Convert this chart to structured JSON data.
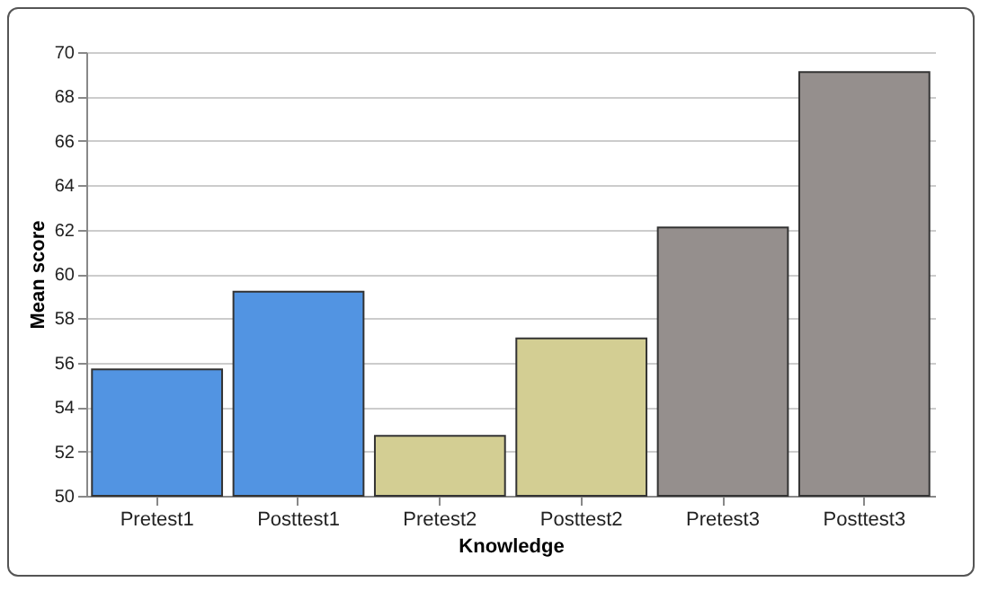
{
  "chart_data": {
    "type": "bar",
    "xlabel": "Knowledge",
    "ylabel": "Mean score",
    "categories": [
      "Pretest1",
      "Posttest1",
      "Pretest2",
      "Posttest2",
      "Pretest3",
      "Posttest3"
    ],
    "values": [
      55.7,
      59.2,
      52.7,
      57.1,
      62.1,
      69.1
    ],
    "colors": [
      "#5294e2",
      "#5294e2",
      "#d3ce93",
      "#d3ce93",
      "#958f8d",
      "#958f8d"
    ],
    "ylim": [
      50,
      70
    ],
    "yticks": [
      50,
      52,
      54,
      56,
      58,
      60,
      62,
      64,
      66,
      68,
      70
    ],
    "grid": "y"
  }
}
